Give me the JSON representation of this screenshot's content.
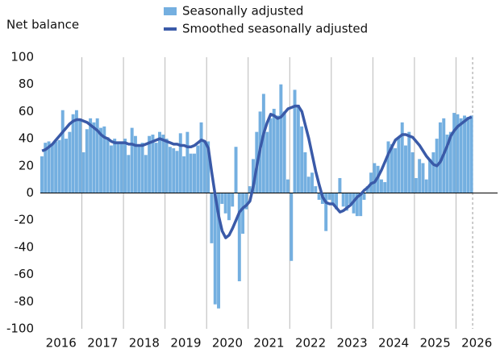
{
  "chart_data": {
    "type": "bar_line",
    "y_label": "Net balance",
    "xlim": [
      2016,
      2027
    ],
    "xticks": [
      {
        "value": 2016.5,
        "label": "2016"
      },
      {
        "value": 2017.5,
        "label": "2017"
      },
      {
        "value": 2018.5,
        "label": "2018"
      },
      {
        "value": 2019.5,
        "label": "2019"
      },
      {
        "value": 2020.5,
        "label": "2020"
      },
      {
        "value": 2021.5,
        "label": "2021"
      },
      {
        "value": 2022.5,
        "label": "2022"
      },
      {
        "value": 2023.5,
        "label": "2023"
      },
      {
        "value": 2024.5,
        "label": "2024"
      },
      {
        "value": 2025.5,
        "label": "2025"
      },
      {
        "value": 2026.5,
        "label": "2026"
      }
    ],
    "xgrid": [
      2017,
      2018,
      2019,
      2020,
      2021,
      2022,
      2023,
      2024,
      2025,
      2026
    ],
    "vline": 2026.4,
    "ylim": [
      -100,
      100
    ],
    "yticks": [
      -100,
      -80,
      -60,
      -40,
      -20,
      0,
      20,
      40,
      60,
      80,
      100
    ],
    "x": [
      2016,
      2016.083,
      2016.167,
      2016.25,
      2016.333,
      2016.417,
      2016.5,
      2016.583,
      2016.667,
      2016.75,
      2016.833,
      2016.917,
      2017,
      2017.083,
      2017.167,
      2017.25,
      2017.333,
      2017.417,
      2017.5,
      2017.583,
      2017.667,
      2017.75,
      2017.833,
      2017.917,
      2018,
      2018.083,
      2018.167,
      2018.25,
      2018.333,
      2018.417,
      2018.5,
      2018.583,
      2018.667,
      2018.75,
      2018.833,
      2018.917,
      2019,
      2019.083,
      2019.167,
      2019.25,
      2019.333,
      2019.417,
      2019.5,
      2019.583,
      2019.667,
      2019.75,
      2019.833,
      2019.917,
      2020,
      2020.083,
      2020.167,
      2020.25,
      2020.333,
      2020.417,
      2020.5,
      2020.583,
      2020.667,
      2020.75,
      2020.833,
      2020.917,
      2021,
      2021.083,
      2021.167,
      2021.25,
      2021.333,
      2021.417,
      2021.5,
      2021.583,
      2021.667,
      2021.75,
      2021.833,
      2021.917,
      2022,
      2022.083,
      2022.167,
      2022.25,
      2022.333,
      2022.417,
      2022.5,
      2022.583,
      2022.667,
      2022.75,
      2022.833,
      2022.917,
      2023,
      2023.083,
      2023.167,
      2023.25,
      2023.333,
      2023.417,
      2023.5,
      2023.583,
      2023.667,
      2023.75,
      2023.833,
      2023.917,
      2024,
      2024.083,
      2024.167,
      2024.25,
      2024.333,
      2024.417,
      2024.5,
      2024.583,
      2024.667,
      2024.75,
      2024.833,
      2024.917,
      2025,
      2025.083,
      2025.167,
      2025.25,
      2025.333,
      2025.417,
      2025.5,
      2025.583,
      2025.667,
      2025.75,
      2025.833,
      2025.917,
      2026,
      2026.083,
      2026.167,
      2026.25,
      2026.333
    ],
    "series": [
      {
        "name": "Seasonally adjusted",
        "kind": "bar",
        "color": "#74afe0",
        "values": [
          27,
          37,
          38,
          36,
          38,
          39,
          61,
          40,
          45,
          58,
          61,
          54,
          30,
          47,
          55,
          52,
          55,
          48,
          49,
          41,
          35,
          40,
          37,
          38,
          40,
          28,
          48,
          42,
          35,
          37,
          28,
          42,
          43,
          37,
          45,
          43,
          40,
          34,
          33,
          31,
          44,
          27,
          45,
          29,
          29,
          35,
          52,
          38,
          38,
          -37,
          -82,
          -85,
          -8,
          -15,
          -20,
          -10,
          34,
          -65,
          -30,
          -12,
          5,
          25,
          45,
          60,
          73,
          45,
          55,
          62,
          57,
          80,
          60,
          10,
          -50,
          76,
          65,
          49,
          30,
          12,
          15,
          5,
          -5,
          -8,
          -28,
          -5,
          -8,
          -12,
          11,
          -10,
          -13,
          -8,
          -15,
          -17,
          -17,
          -5,
          5,
          15,
          22,
          20,
          10,
          8,
          38,
          36,
          33,
          41,
          52,
          35,
          45,
          30,
          11,
          25,
          22,
          10,
          25,
          30,
          40,
          52,
          55,
          43,
          45,
          59,
          58,
          55,
          57,
          56,
          57
        ]
      },
      {
        "name": "Smoothed seasonally adjusted",
        "kind": "line",
        "color": "#3a5aa8",
        "values": [
          31,
          32,
          34,
          36,
          39,
          42,
          45,
          48,
          51,
          53,
          54,
          54,
          53,
          52,
          50,
          48,
          46,
          43,
          41,
          40,
          38,
          37,
          37,
          37,
          37,
          36,
          36,
          35,
          35,
          35,
          36,
          37,
          38,
          39,
          40,
          39,
          38,
          37,
          36,
          36,
          35,
          35,
          34,
          34,
          35,
          37,
          39,
          38,
          33,
          15,
          -2,
          -17,
          -28,
          -33,
          -31,
          -26,
          -20,
          -14,
          -11,
          -9,
          -6,
          5,
          20,
          33,
          44,
          52,
          58,
          57,
          55,
          56,
          59,
          62,
          63,
          64,
          64,
          60,
          50,
          40,
          28,
          16,
          6,
          -3,
          -7,
          -8,
          -8,
          -11,
          -14,
          -13,
          -11,
          -9,
          -6,
          -3,
          -1,
          2,
          4,
          7,
          8,
          12,
          17,
          23,
          29,
          34,
          39,
          41,
          43,
          43,
          42,
          41,
          38,
          35,
          31,
          27,
          24,
          21,
          20,
          23,
          29,
          35,
          42,
          46,
          49,
          51,
          53,
          55,
          56
        ]
      }
    ]
  }
}
